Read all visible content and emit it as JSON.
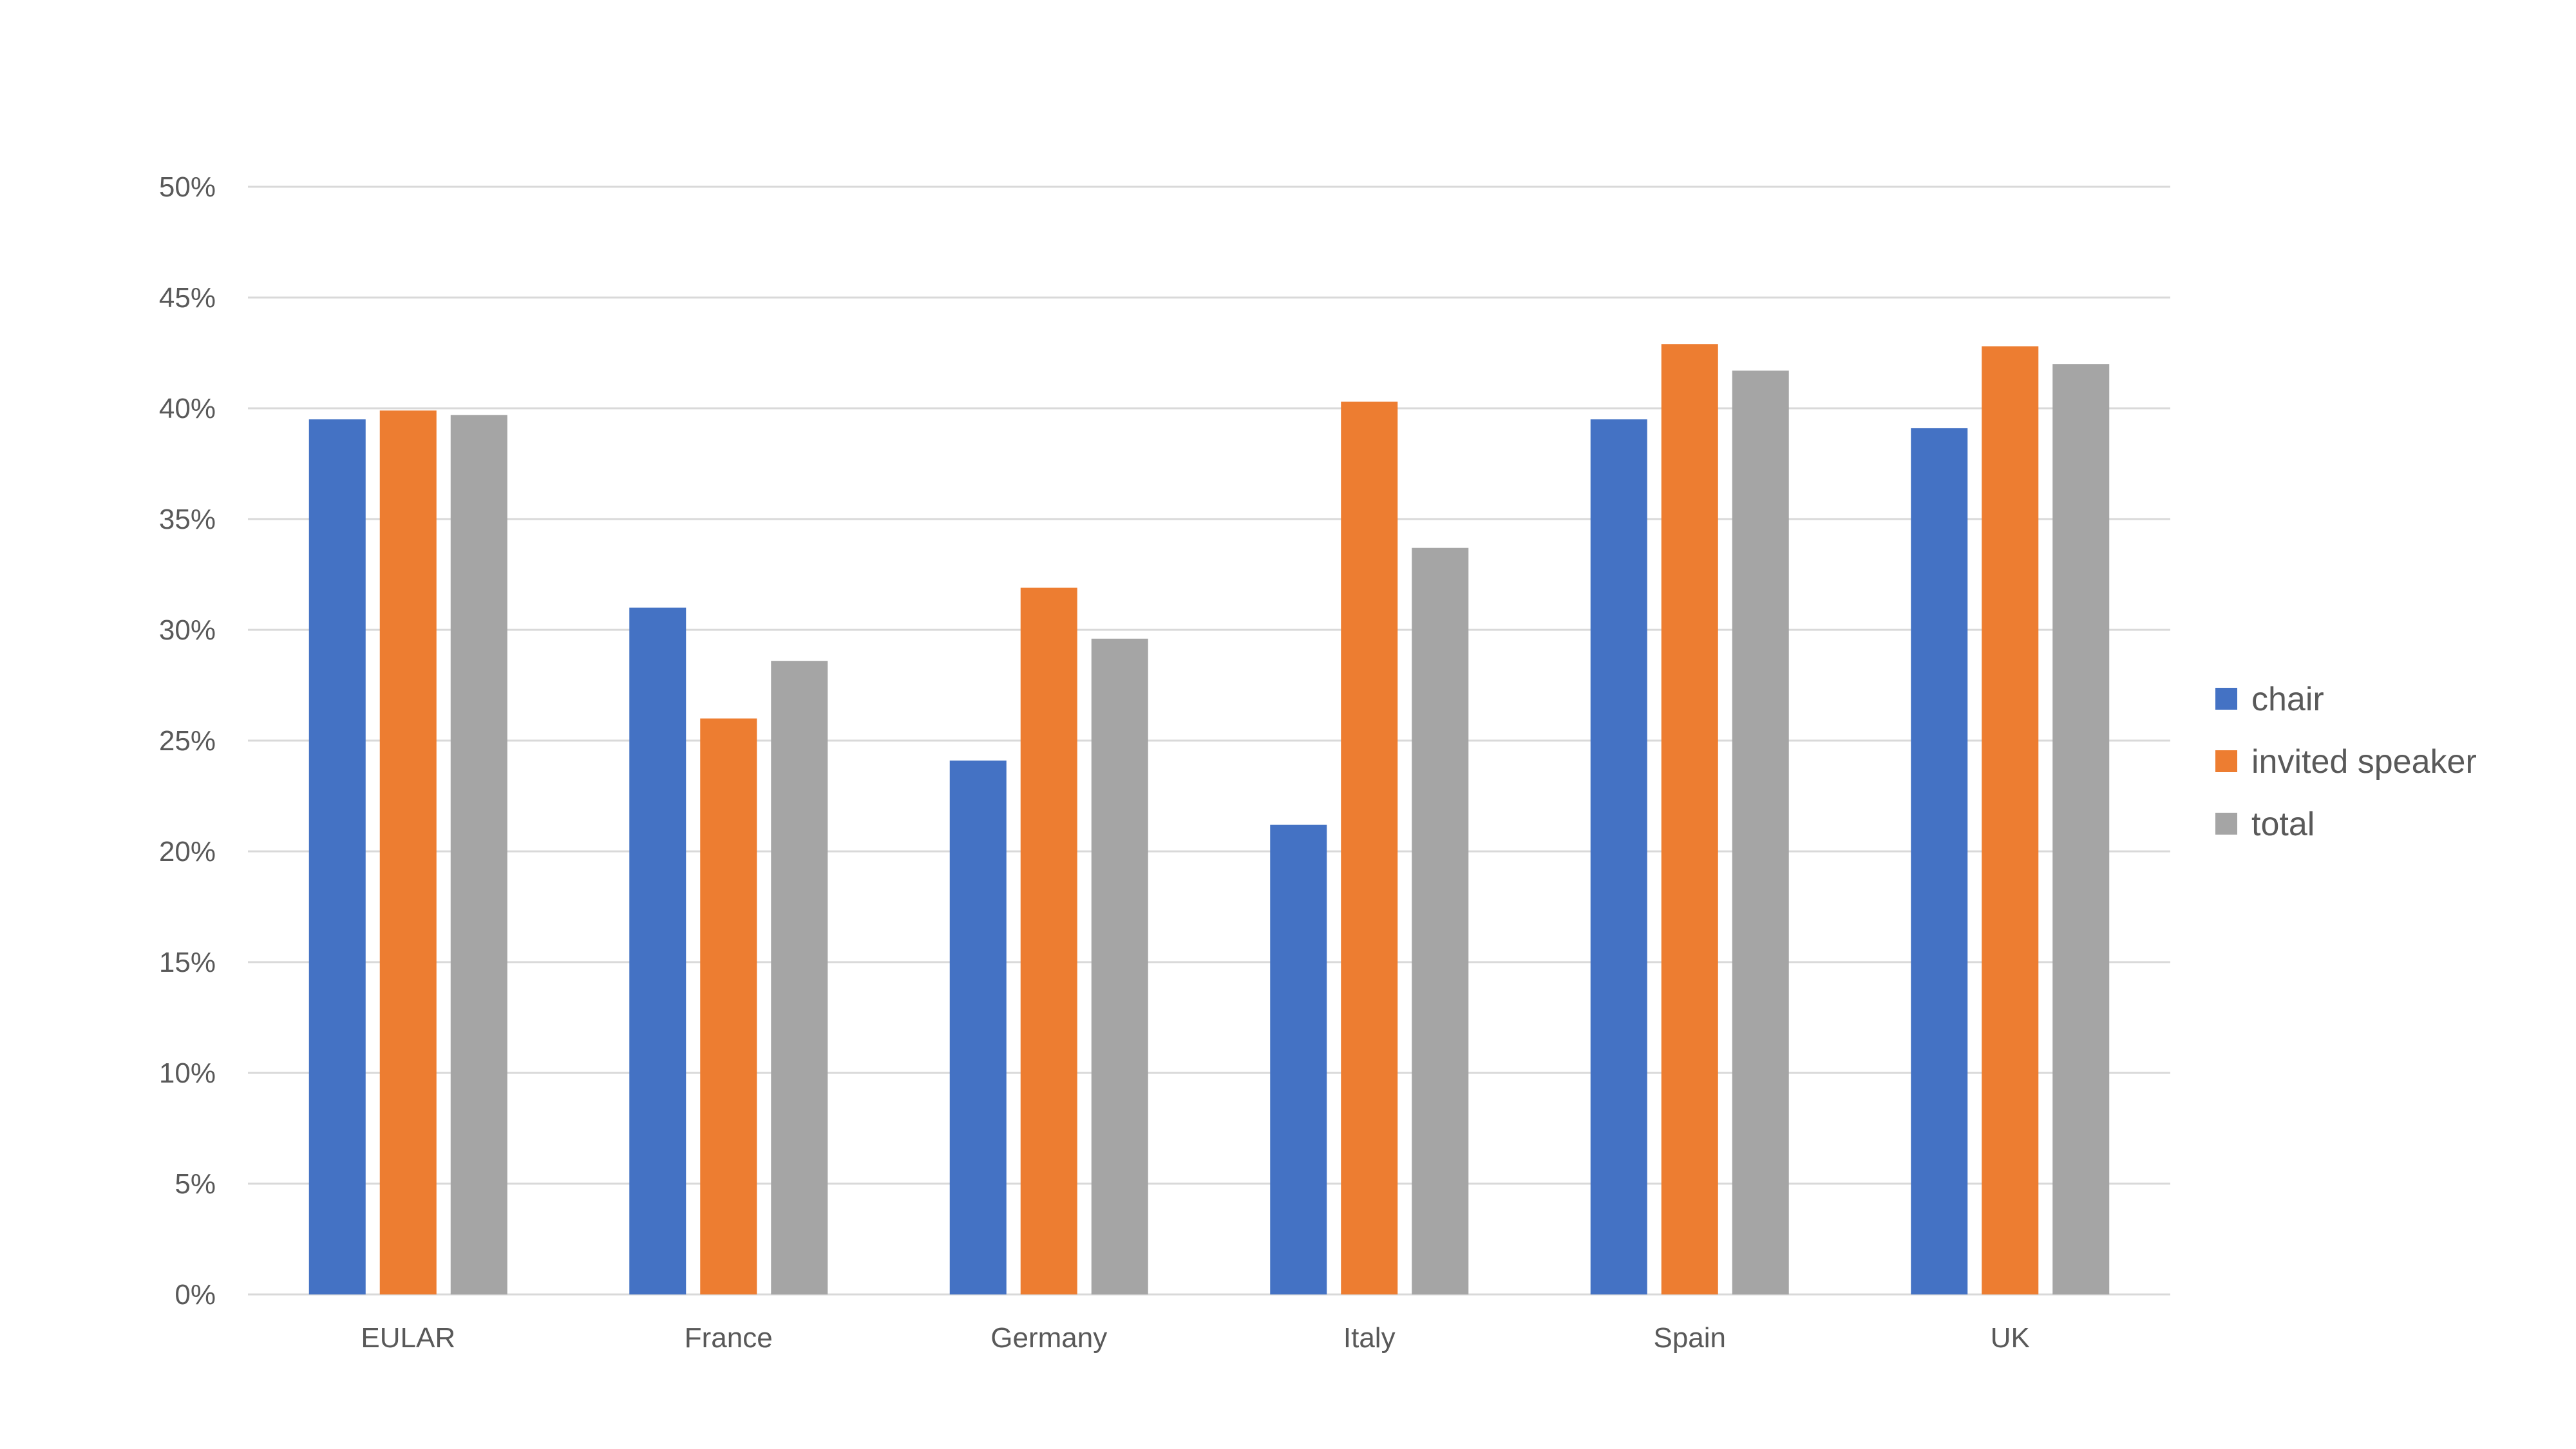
{
  "chart_data": {
    "type": "bar",
    "title": "",
    "xlabel": "",
    "ylabel": "",
    "categories": [
      "EULAR",
      "France",
      "Germany",
      "Italy",
      "Spain",
      "UK"
    ],
    "series": [
      {
        "name": "chair",
        "color": "#4472c4",
        "values": [
          0.395,
          0.31,
          0.241,
          0.212,
          0.395,
          0.391
        ]
      },
      {
        "name": "invited speaker",
        "color": "#ed7d31",
        "values": [
          0.399,
          0.26,
          0.319,
          0.403,
          0.429,
          0.428
        ]
      },
      {
        "name": "total",
        "color": "#a5a5a5",
        "values": [
          0.397,
          0.286,
          0.296,
          0.337,
          0.417,
          0.42
        ]
      }
    ],
    "ylim": [
      0,
      0.5
    ],
    "yticks": [
      0,
      0.05,
      0.1,
      0.15,
      0.2,
      0.25,
      0.3,
      0.35,
      0.4,
      0.45,
      0.5
    ],
    "ytick_labels": [
      "0%",
      "5%",
      "10%",
      "15%",
      "20%",
      "25%",
      "30%",
      "35%",
      "40%",
      "45%",
      "50%"
    ],
    "grid": true,
    "legend_position": "right"
  }
}
